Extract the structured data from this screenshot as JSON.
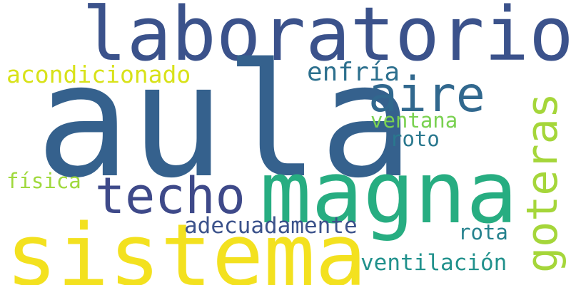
{
  "words": {
    "laboratorio": {
      "text": "laboratorio",
      "color": "#3b528b"
    },
    "aula": {
      "text": "aula",
      "color": "#35618d"
    },
    "magna": {
      "text": "magna",
      "color": "#27ad81"
    },
    "sistema": {
      "text": "sistema",
      "color": "#f3e11f"
    },
    "techo": {
      "text": "techo",
      "color": "#3e4989"
    },
    "aire": {
      "text": "aire",
      "color": "#31688e"
    },
    "goteras": {
      "text": "goteras",
      "color": "#a5d63a"
    },
    "acondicionado": {
      "text": "acondicionado",
      "color": "#d8e219"
    },
    "enfria": {
      "text": "enfría",
      "color": "#2d708e"
    },
    "ventana": {
      "text": "ventana",
      "color": "#7ad151"
    },
    "roto": {
      "text": "roto",
      "color": "#2a788e"
    },
    "fisica": {
      "text": "física",
      "color": "#a0d93d"
    },
    "adecuadamente": {
      "text": "adecuadamente",
      "color": "#3b528b"
    },
    "rota": {
      "text": "rota",
      "color": "#26828e"
    },
    "ventilacion": {
      "text": "ventilación",
      "color": "#21918c"
    }
  }
}
